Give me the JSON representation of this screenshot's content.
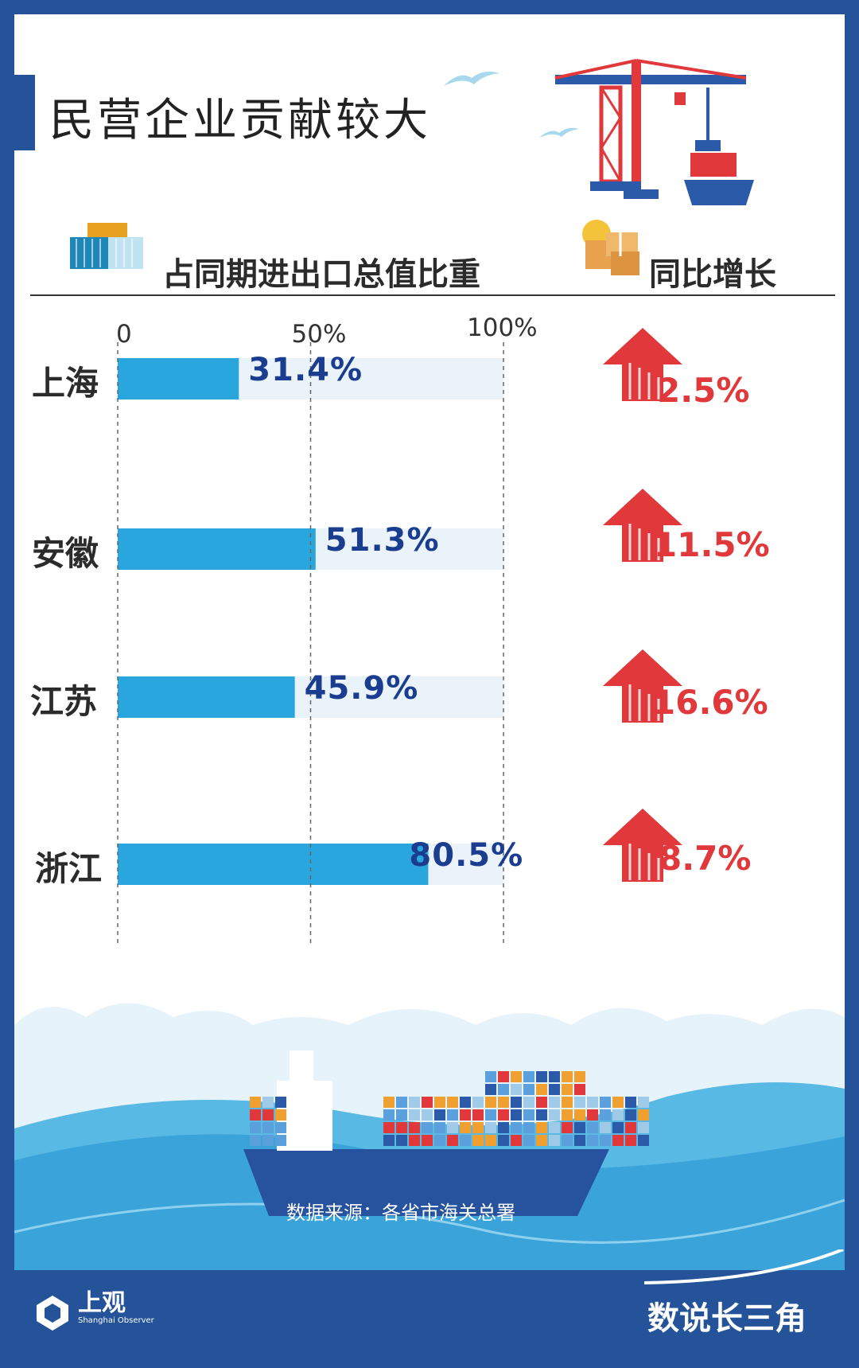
{
  "header": {
    "title": "民营企业贡献较大"
  },
  "legend": {
    "share_label": "占同期进出口总值比重",
    "growth_label": "同比增长"
  },
  "chart_data": {
    "type": "bar",
    "orientation": "horizontal",
    "categories": [
      "上海",
      "安徽",
      "江苏",
      "浙江"
    ],
    "series": [
      {
        "name": "占同期进出口总值比重",
        "values": [
          31.4,
          51.3,
          45.9,
          80.5
        ],
        "labels": [
          "31.4%",
          "51.3%",
          "45.9%",
          "80.5%"
        ]
      },
      {
        "name": "同比增长",
        "values": [
          2.5,
          11.5,
          16.6,
          8.7
        ],
        "labels": [
          "2.5%",
          "11.5%",
          "16.6%",
          "8.7%"
        ]
      }
    ],
    "xlim": [
      0,
      100
    ],
    "x_ticks": [
      "0",
      "50%",
      "100%"
    ],
    "grid": "dashed vertical at 0, 50%, 100%",
    "colors": {
      "bar": "#29a6dd",
      "track": "#eaf3fa",
      "share_text": "#1a3d8f",
      "growth_text": "#e0383b"
    }
  },
  "footer": {
    "source": "数据来源：各省市海关总署",
    "brand": "上观",
    "brand_sub": "Shanghai Observer",
    "series": "数说长三角"
  }
}
